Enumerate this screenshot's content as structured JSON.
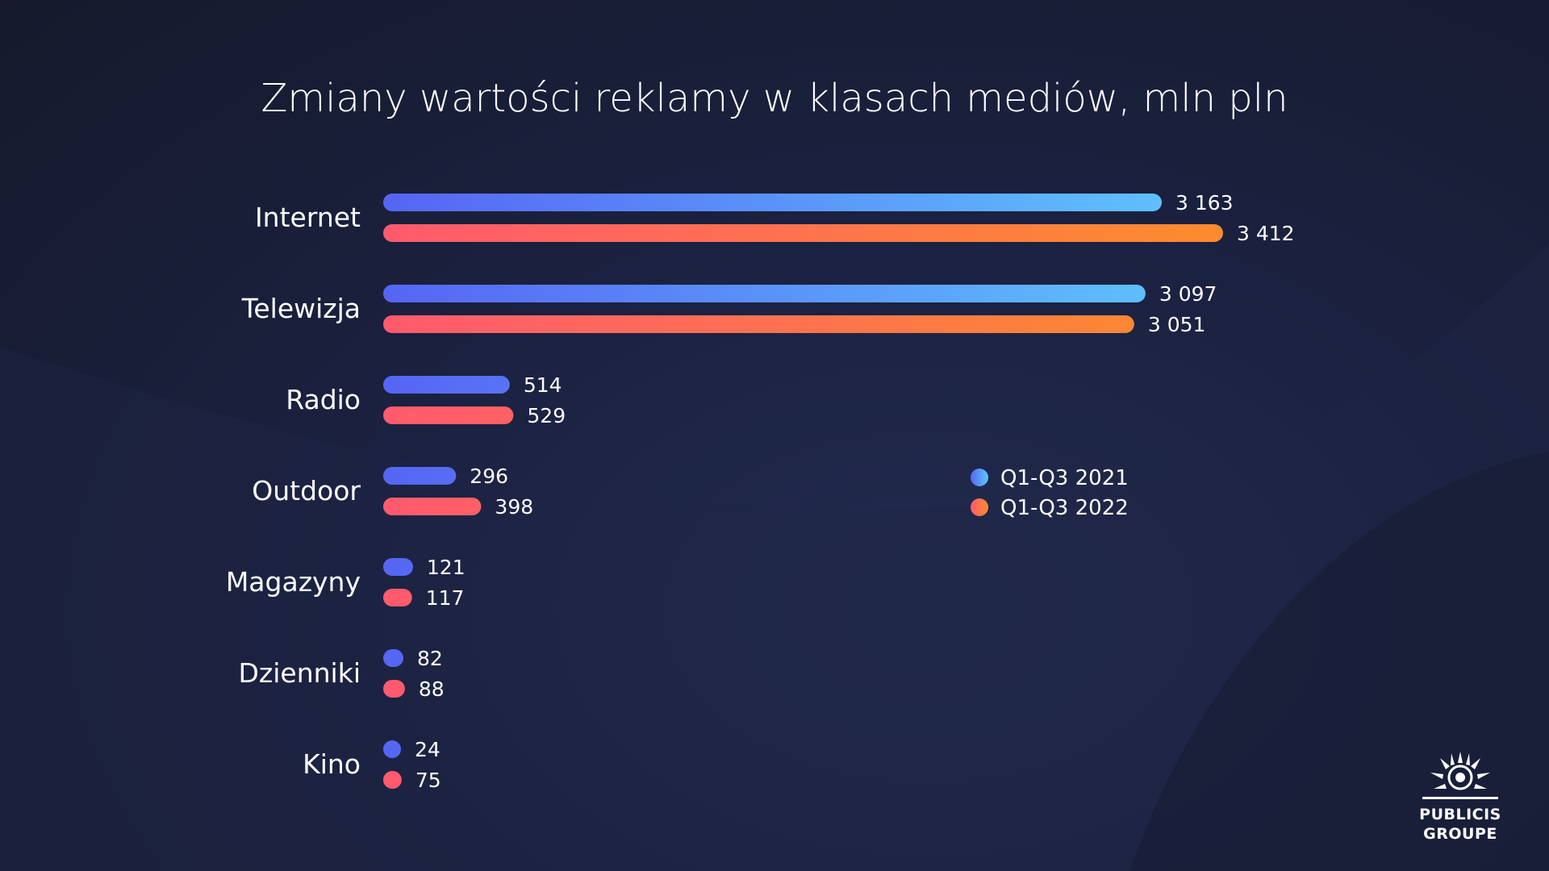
{
  "chart_data": {
    "type": "bar",
    "orientation": "horizontal",
    "title": "Zmiany wartości reklamy w klasach mediów, mln pln",
    "categories": [
      "Internet",
      "Telewizja",
      "Radio",
      "Outdoor",
      "Magazyny",
      "Dzienniki",
      "Kino"
    ],
    "series": [
      {
        "name": "Q1-Q3 2021",
        "values": [
          3163,
          3097,
          514,
          296,
          121,
          82,
          24
        ],
        "labels": [
          "3 163",
          "3 097",
          "514",
          "296",
          "121",
          "82",
          "24"
        ],
        "color_start": "#5665f4",
        "color_end": "#5fc7fd"
      },
      {
        "name": "Q1-Q3 2022",
        "values": [
          3412,
          3051,
          529,
          398,
          117,
          88,
          75
        ],
        "labels": [
          "3 412",
          "3 051",
          "529",
          "398",
          "117",
          "88",
          "75"
        ],
        "color_start": "#ff5a6e",
        "color_end": "#fb8c2d"
      }
    ],
    "xlim": [
      0,
      3412
    ],
    "grid": false,
    "legend_position": "middle-right"
  },
  "logo": {
    "line1": "PUBLICIS",
    "line2": "GROUPE"
  }
}
